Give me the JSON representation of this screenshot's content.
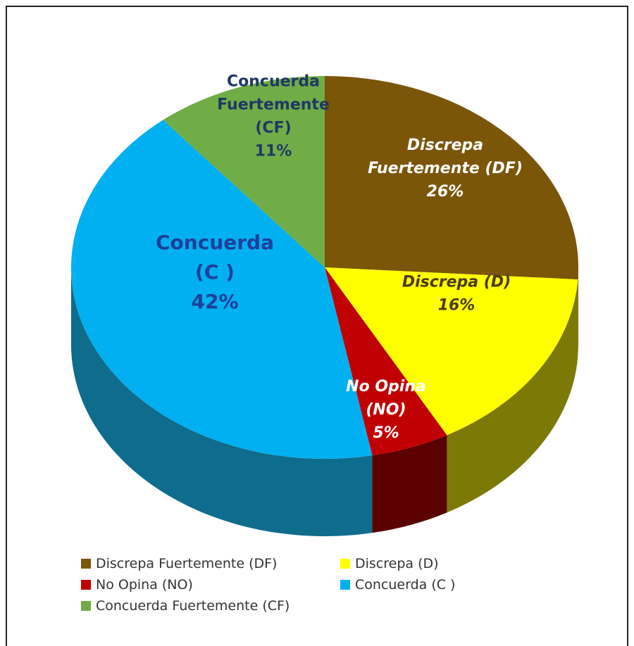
{
  "chart_data": {
    "type": "pie",
    "title": "",
    "slices": [
      {
        "label": "Discrepa Fuertemente (DF)",
        "value": 26,
        "color": "#7B5508",
        "side_color": "#5E5A07",
        "pie_label": [
          "Discrepa",
          "Fuertemente (DF)",
          "26%"
        ],
        "text_color": "#ffffff"
      },
      {
        "label": "Discrepa (D)",
        "value": 16,
        "color": "#FFFF00",
        "side_color": "#7C7A06",
        "pie_label": [
          "Discrepa (D)",
          "16%"
        ],
        "text_color": "#4a3a1a"
      },
      {
        "label": "No Opina (NO)",
        "value": 5,
        "color": "#C00000",
        "side_color": "#5A0000",
        "pie_label": [
          "No Opina",
          "(NO)",
          "5%"
        ],
        "text_color": "#ffffff"
      },
      {
        "label": "Concuerda (C )",
        "value": 42,
        "color": "#00B0F0",
        "side_color": "#0E6C8C",
        "pie_label": [
          "Concuerda",
          "(C )",
          "42%"
        ],
        "text_color": "#1F3F9A"
      },
      {
        "label": "Concuerda Fuertemente (CF)",
        "value": 11,
        "color": "#70AD47",
        "side_color": "#4F7F30",
        "pie_label": [
          "Concuerda",
          "Fuertemente",
          "(CF)",
          "11%"
        ],
        "text_color": "#1F3864"
      }
    ],
    "legend_placement": "bottom"
  }
}
